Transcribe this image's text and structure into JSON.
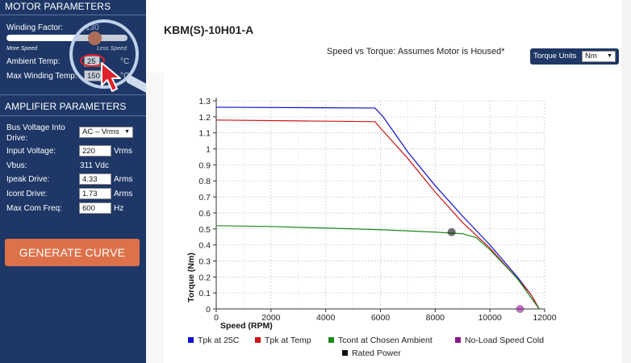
{
  "sidebar": {
    "motor_title": "MOTOR PARAMETERS",
    "winding_factor_label": "Winding Factor:",
    "winding_factor_value": "130",
    "winding_factor_fraction": 0.73,
    "more_speed": "More Speed",
    "less_speed": "Less Speed",
    "ambient_label": "Ambient Temp:",
    "ambient_value": "25",
    "ambient_unit": "°C",
    "max_winding_label": "Max Winding Temp:",
    "max_winding_value": "150",
    "max_winding_unit": "°C",
    "amp_title": "AMPLIFIER PARAMETERS",
    "bus_voltage_label_1": "Bus Voltage Into",
    "bus_voltage_label_2": "Drive:",
    "bus_voltage_value": "AC – Vrms",
    "input_voltage_label": "Input Voltage:",
    "input_voltage_value": "220",
    "input_voltage_unit": "Vrms",
    "vbus_label": "Vbus:",
    "vbus_value": "311 Vdc",
    "ipeak_label": "Ipeak Drive:",
    "ipeak_value": "4.33",
    "ipeak_unit": "Arms",
    "icont_label": "Icont Drive:",
    "icont_value": "1.73",
    "icont_unit": "Arms",
    "max_com_label": "Max Com Freq:",
    "max_com_value": "600",
    "max_com_unit": "Hz",
    "generate_button": "GENERATE CURVE"
  },
  "main": {
    "title": "KBM(S)-10H01-A",
    "chart_title": "Speed vs Torque: Assumes Motor is Housed*",
    "torque_units_label": "Torque Units",
    "torque_units_value": "Nm"
  },
  "chart_data": {
    "type": "line",
    "xlabel": "Speed (RPM)",
    "ylabel": "Torque (Nm)",
    "xlim": [
      0,
      12000
    ],
    "ylim": [
      0,
      1.3
    ],
    "x_ticks": [
      0,
      2000,
      4000,
      6000,
      8000,
      10000,
      12000
    ],
    "y_ticks": [
      0,
      0.1,
      0.2,
      0.3,
      0.4,
      0.5,
      0.6,
      0.7,
      0.8,
      0.9,
      1,
      1.1,
      1.2,
      1.3
    ],
    "grid": true,
    "legend_position": "bottom",
    "series": [
      {
        "name": "Tpk at 25C",
        "color": "#1010cc",
        "x": [
          0,
          5800,
          6100,
          7000,
          8000,
          9000,
          10000,
          11000,
          11500,
          11800
        ],
        "y": [
          1.26,
          1.255,
          1.2,
          0.98,
          0.77,
          0.58,
          0.4,
          0.2,
          0.09,
          0.0
        ]
      },
      {
        "name": "Tpk at Temp",
        "color": "#cc1515",
        "x": [
          0,
          5800,
          6000,
          7000,
          8000,
          9000,
          9500,
          10000,
          11000,
          11500,
          11800
        ],
        "y": [
          1.18,
          1.17,
          1.13,
          0.94,
          0.73,
          0.54,
          0.46,
          0.38,
          0.19,
          0.09,
          0.0
        ]
      },
      {
        "name": "Tcont at Chosen Ambient",
        "color": "#1a8a1a",
        "x": [
          0,
          2000,
          4000,
          6000,
          8000,
          9000,
          9500,
          10000,
          11000,
          11800
        ],
        "y": [
          0.52,
          0.515,
          0.505,
          0.495,
          0.48,
          0.47,
          0.445,
          0.37,
          0.19,
          0.0
        ]
      },
      {
        "name": "No-Load Speed Cold",
        "color": "#8a1a8a",
        "marker": "point",
        "x": [
          11100
        ],
        "y": [
          0
        ]
      },
      {
        "name": "Rated Power",
        "color": "#111111",
        "marker": "point",
        "x": [
          8600
        ],
        "y": [
          0.48
        ]
      }
    ],
    "legend_marker_colors": [
      "#1010cc",
      "#cc1515",
      "#1a8a1a",
      "#8a1a8a",
      "#111111"
    ]
  }
}
